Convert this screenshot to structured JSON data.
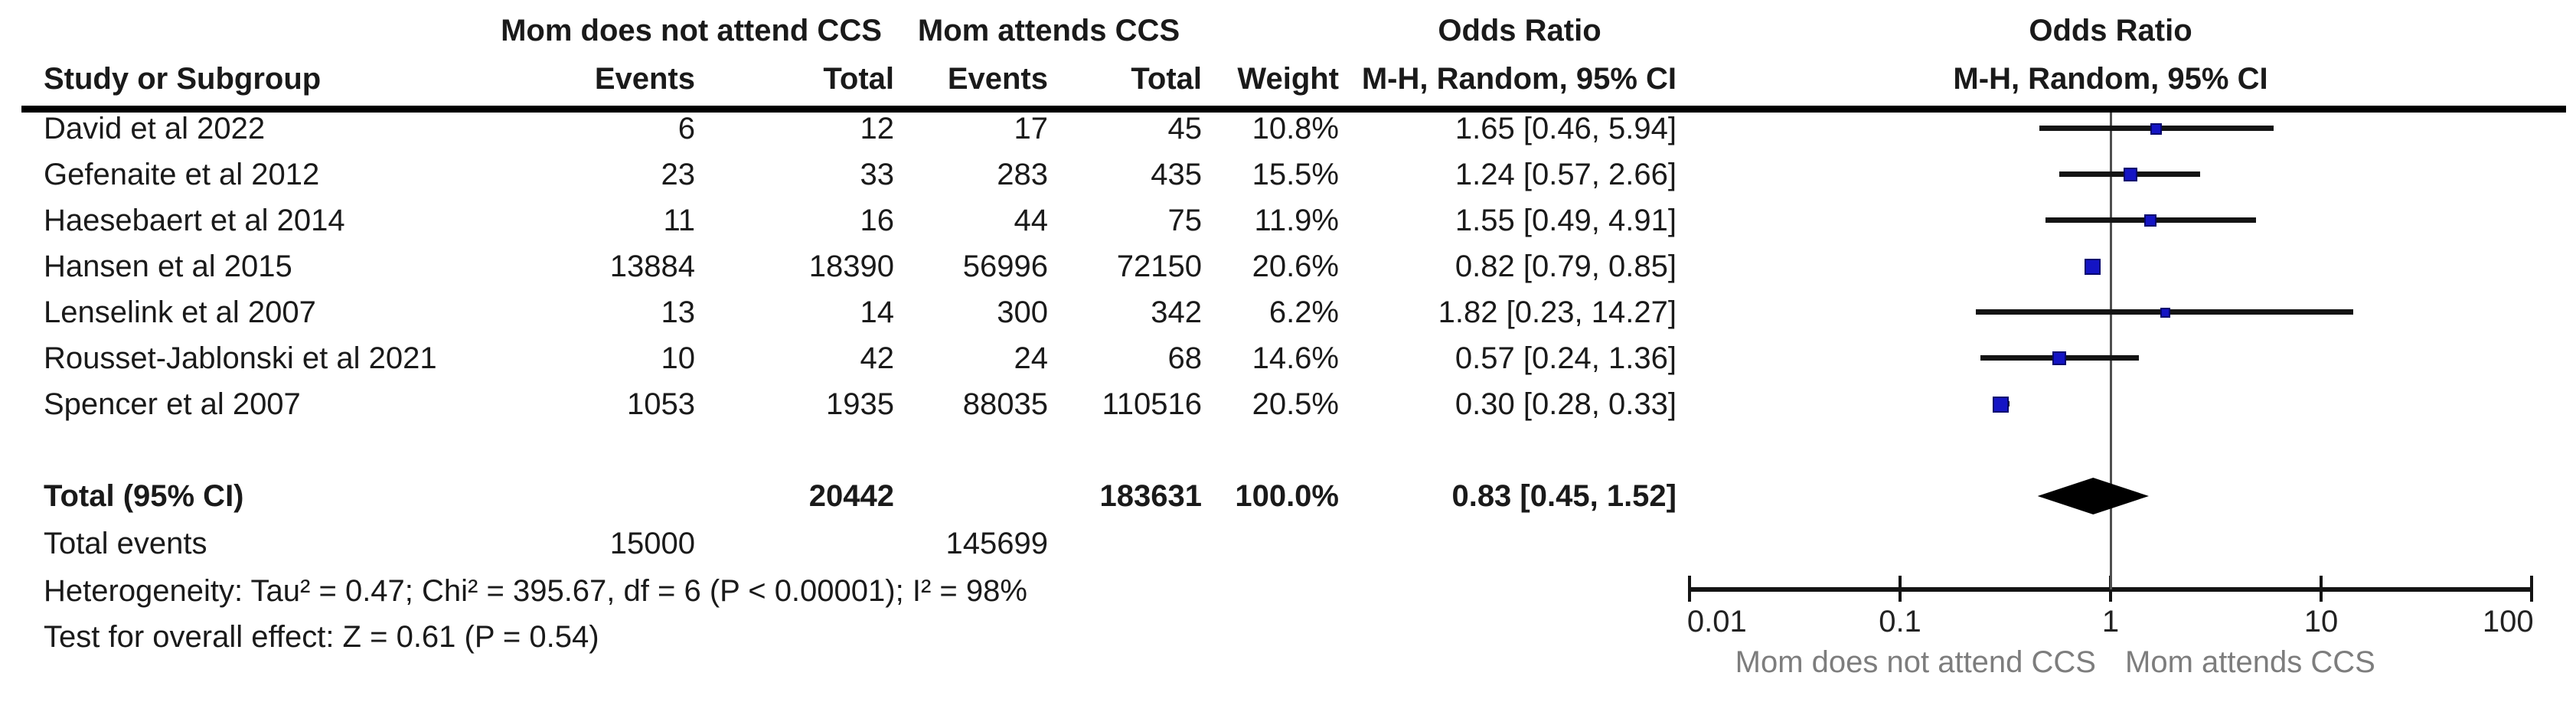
{
  "header": {
    "group1": "Mom does not attend CCS",
    "group2": "Mom attends CCS",
    "odds_ratio": "Odds Ratio",
    "mh_random": "M-H, Random, 95% CI"
  },
  "columns": {
    "study": "Study or Subgroup",
    "events": "Events",
    "total": "Total",
    "weight": "Weight"
  },
  "table": {
    "rows": [
      {
        "study": "David et al 2022",
        "events1": "6",
        "total1": "12",
        "events2": "17",
        "total2": "45",
        "weight": "10.8%",
        "or_ci": "1.65 [0.46, 5.94]"
      },
      {
        "study": "Gefenaite et al 2012",
        "events1": "23",
        "total1": "33",
        "events2": "283",
        "total2": "435",
        "weight": "15.5%",
        "or_ci": "1.24 [0.57, 2.66]"
      },
      {
        "study": "Haesebaert et al 2014",
        "events1": "11",
        "total1": "16",
        "events2": "44",
        "total2": "75",
        "weight": "11.9%",
        "or_ci": "1.55 [0.49, 4.91]"
      },
      {
        "study": "Hansen et al 2015",
        "events1": "13884",
        "total1": "18390",
        "events2": "56996",
        "total2": "72150",
        "weight": "20.6%",
        "or_ci": "0.82 [0.79, 0.85]"
      },
      {
        "study": "Lenselink et al 2007",
        "events1": "13",
        "total1": "14",
        "events2": "300",
        "total2": "342",
        "weight": "6.2%",
        "or_ci": "1.82 [0.23, 14.27]"
      },
      {
        "study": "Rousset-Jablonski et al 2021",
        "events1": "10",
        "total1": "42",
        "events2": "24",
        "total2": "68",
        "weight": "14.6%",
        "or_ci": "0.57 [0.24, 1.36]"
      },
      {
        "study": "Spencer et al 2007",
        "events1": "1053",
        "total1": "1935",
        "events2": "88035",
        "total2": "110516",
        "weight": "20.5%",
        "or_ci": "0.30 [0.28, 0.33]"
      }
    ],
    "total_row": {
      "label": "Total (95% CI)",
      "total1": "20442",
      "total2": "183631",
      "weight": "100.0%",
      "or_ci": "0.83 [0.45, 1.52]"
    },
    "total_events": {
      "label": "Total events",
      "events1": "15000",
      "events2": "145699"
    },
    "heterogeneity": "Heterogeneity: Tau² = 0.47; Chi² = 395.67, df = 6 (P < 0.00001); I² = 98%",
    "overall_effect": "Test for overall effect: Z = 0.61 (P = 0.54)"
  },
  "chart_data": {
    "type": "forest_plot",
    "effect_measure": "Odds Ratio",
    "method": "M-H, Random, 95% CI",
    "x_scale": "log",
    "xlim": [
      0.01,
      100
    ],
    "axis_ticks": [
      0.01,
      0.1,
      1,
      10,
      100
    ],
    "axis_tick_labels": [
      "0.01",
      "0.1",
      "1",
      "10",
      "100"
    ],
    "null_line": 1,
    "studies": [
      {
        "name": "David et al 2022",
        "or": 1.65,
        "ci_low": 0.46,
        "ci_high": 5.94,
        "weight_pct": 10.8
      },
      {
        "name": "Gefenaite et al 2012",
        "or": 1.24,
        "ci_low": 0.57,
        "ci_high": 2.66,
        "weight_pct": 15.5
      },
      {
        "name": "Haesebaert et al 2014",
        "or": 1.55,
        "ci_low": 0.49,
        "ci_high": 4.91,
        "weight_pct": 11.9
      },
      {
        "name": "Hansen et al 2015",
        "or": 0.82,
        "ci_low": 0.79,
        "ci_high": 0.85,
        "weight_pct": 20.6
      },
      {
        "name": "Lenselink et al 2007",
        "or": 1.82,
        "ci_low": 0.23,
        "ci_high": 14.27,
        "weight_pct": 6.2
      },
      {
        "name": "Rousset-Jablonski et al 2021",
        "or": 0.57,
        "ci_low": 0.24,
        "ci_high": 1.36,
        "weight_pct": 14.6
      },
      {
        "name": "Spencer et al 2007",
        "or": 0.3,
        "ci_low": 0.28,
        "ci_high": 0.33,
        "weight_pct": 20.5
      }
    ],
    "total": {
      "or": 0.83,
      "ci_low": 0.45,
      "ci_high": 1.52
    },
    "x_axis_label_left": "Mom does not attend CCS",
    "x_axis_label_right": "Mom attends CCS",
    "marker_color": "#1414c4",
    "marker_border_color": "#05056e",
    "diamond_color": "#000000"
  }
}
